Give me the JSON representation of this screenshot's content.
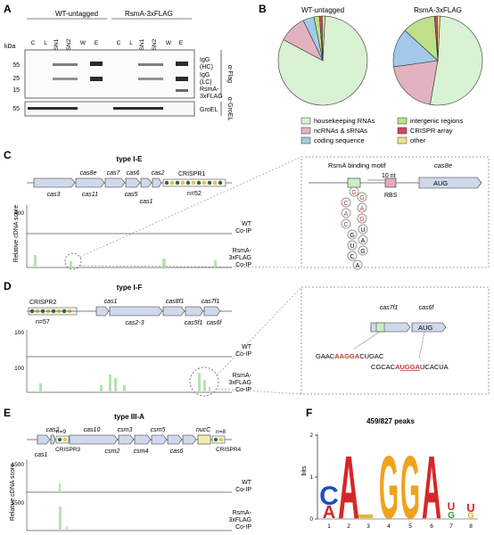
{
  "panels": {
    "a": "A",
    "b": "B",
    "c": "C",
    "d": "D",
    "e": "E",
    "f": "F"
  },
  "panel_a": {
    "wt_label": "WT-untagged",
    "flag_label": "RsmA-3xFLAG",
    "kda_label": "kDa",
    "lanes": [
      "C",
      "L",
      "SN1",
      "SN2",
      "W",
      "E",
      "C",
      "L",
      "SN1",
      "SN2",
      "W",
      "E"
    ],
    "markers": [
      "55",
      "25",
      "15",
      "55"
    ],
    "band_labels": {
      "igg_hc_1": "IgG",
      "igg_hc_2": "(HC)",
      "igg_lc_1": "IgG",
      "igg_lc_2": "(LC)",
      "rsma_1": "RsmA-",
      "rsma_2": "3xFLAG",
      "groel": "GroEL"
    },
    "antibody_flag": "α-Flag",
    "antibody_groel": "α-GroEL"
  },
  "panel_b": {
    "pie1_title": "WT-untagged",
    "pie2_title": "RsmA-3xFLAG",
    "legend": [
      {
        "label": "housekeeping RNAs",
        "color": "#d8f2d3"
      },
      {
        "label": "ncRNAs & sRNAs",
        "color": "#e3b2c0"
      },
      {
        "label": "coding sequence",
        "color": "#a3c9ea"
      },
      {
        "label": "intergenic regions",
        "color": "#bfe08a"
      },
      {
        "label": "CRISPR array",
        "color": "#d0455f"
      },
      {
        "label": "other",
        "color": "#f0e28c"
      }
    ],
    "pie1_fractions": [
      0.82,
      0.1,
      0.04,
      0.02,
      0.01,
      0.01
    ],
    "pie2_fractions": [
      0.52,
      0.2,
      0.14,
      0.12,
      0.01,
      0.01
    ]
  },
  "panel_c": {
    "type_label": "type I-E",
    "genes_top": [
      "cas8e",
      "cas7",
      "cas6",
      "cas2"
    ],
    "genes_bottom": [
      "cas3",
      "cas11",
      "cas5",
      "cas1"
    ],
    "crispr_label": "CRISPR1",
    "crispr_n": "n=52",
    "y_axis": "Relative cDNA score",
    "y_tick": "400",
    "wt_track_1": "WT",
    "wt_track_2": "Co-IP",
    "flag_track_1": "RsmA-",
    "flag_track_2": "3xFLAG",
    "flag_track_3": "Co-IP",
    "inset_motif": "RsmA binding motif",
    "inset_gap": "10 nt",
    "inset_gene": "cas8e",
    "inset_start": "AUG",
    "inset_rbs": "RBS",
    "hairpin_nts": [
      "C",
      "A",
      "C",
      "G",
      "A",
      "G",
      "G",
      "A",
      "C",
      "G",
      "U",
      "C",
      "U",
      "A",
      "G"
    ]
  },
  "panel_d": {
    "type_label": "type I-F",
    "crispr_label": "CRISPR2",
    "crispr_n": "n=57",
    "genes_top": [
      "cas1",
      "cas8f1",
      "cas7f1"
    ],
    "genes_bottom": [
      "cas2-3",
      "cas5f1",
      "cas6f"
    ],
    "y_tick_top": "100",
    "y_tick_bottom": "100",
    "wt_track_1": "WT",
    "wt_track_2": "Co-IP",
    "flag_track_1": "RsmA-",
    "flag_track_2": "3xFLAG",
    "flag_track_3": "Co-IP",
    "inset_gene_1": "cas7f1",
    "inset_gene_2": "cas6f",
    "inset_start": "AUG",
    "seq1_pre": "GAAC",
    "seq1_hl": "AAGGA",
    "seq1_post": "CUGAC",
    "seq2_pre": "CGCAC",
    "seq2_hl1": "A",
    "seq2_hl2": "UGGA",
    "seq2_post": "UCACUA"
  },
  "panel_e": {
    "type_label": "type III-A",
    "genes_top": [
      "cas2",
      "cas10",
      "csm3",
      "csm5",
      "nucC"
    ],
    "genes_bottom": [
      "cas1",
      "csm2",
      "csm4",
      "cas6"
    ],
    "crispr3": "CRISPR3",
    "crispr3_n": "n=9",
    "crispr4": "CRISPR4",
    "crispr4_n": "n=8",
    "y_axis": "Relative cDNA score",
    "y_tick_top": "1500",
    "y_tick_bottom": "1500",
    "wt_track_1": "WT",
    "wt_track_2": "Co-IP",
    "flag_track_1": "RsmA-",
    "flag_track_2": "3xFLAG",
    "flag_track_3": "Co-IP"
  },
  "panel_f": {
    "title": "459/827 peaks",
    "y_axis": "bits",
    "y_ticks": [
      "0",
      "1",
      "2"
    ],
    "positions": [
      "1",
      "2",
      "3",
      "4",
      "5",
      "6",
      "7",
      "8"
    ],
    "logo_letters": [
      "C",
      "A",
      "A",
      "G",
      "G",
      "A",
      "U",
      "G"
    ]
  }
}
